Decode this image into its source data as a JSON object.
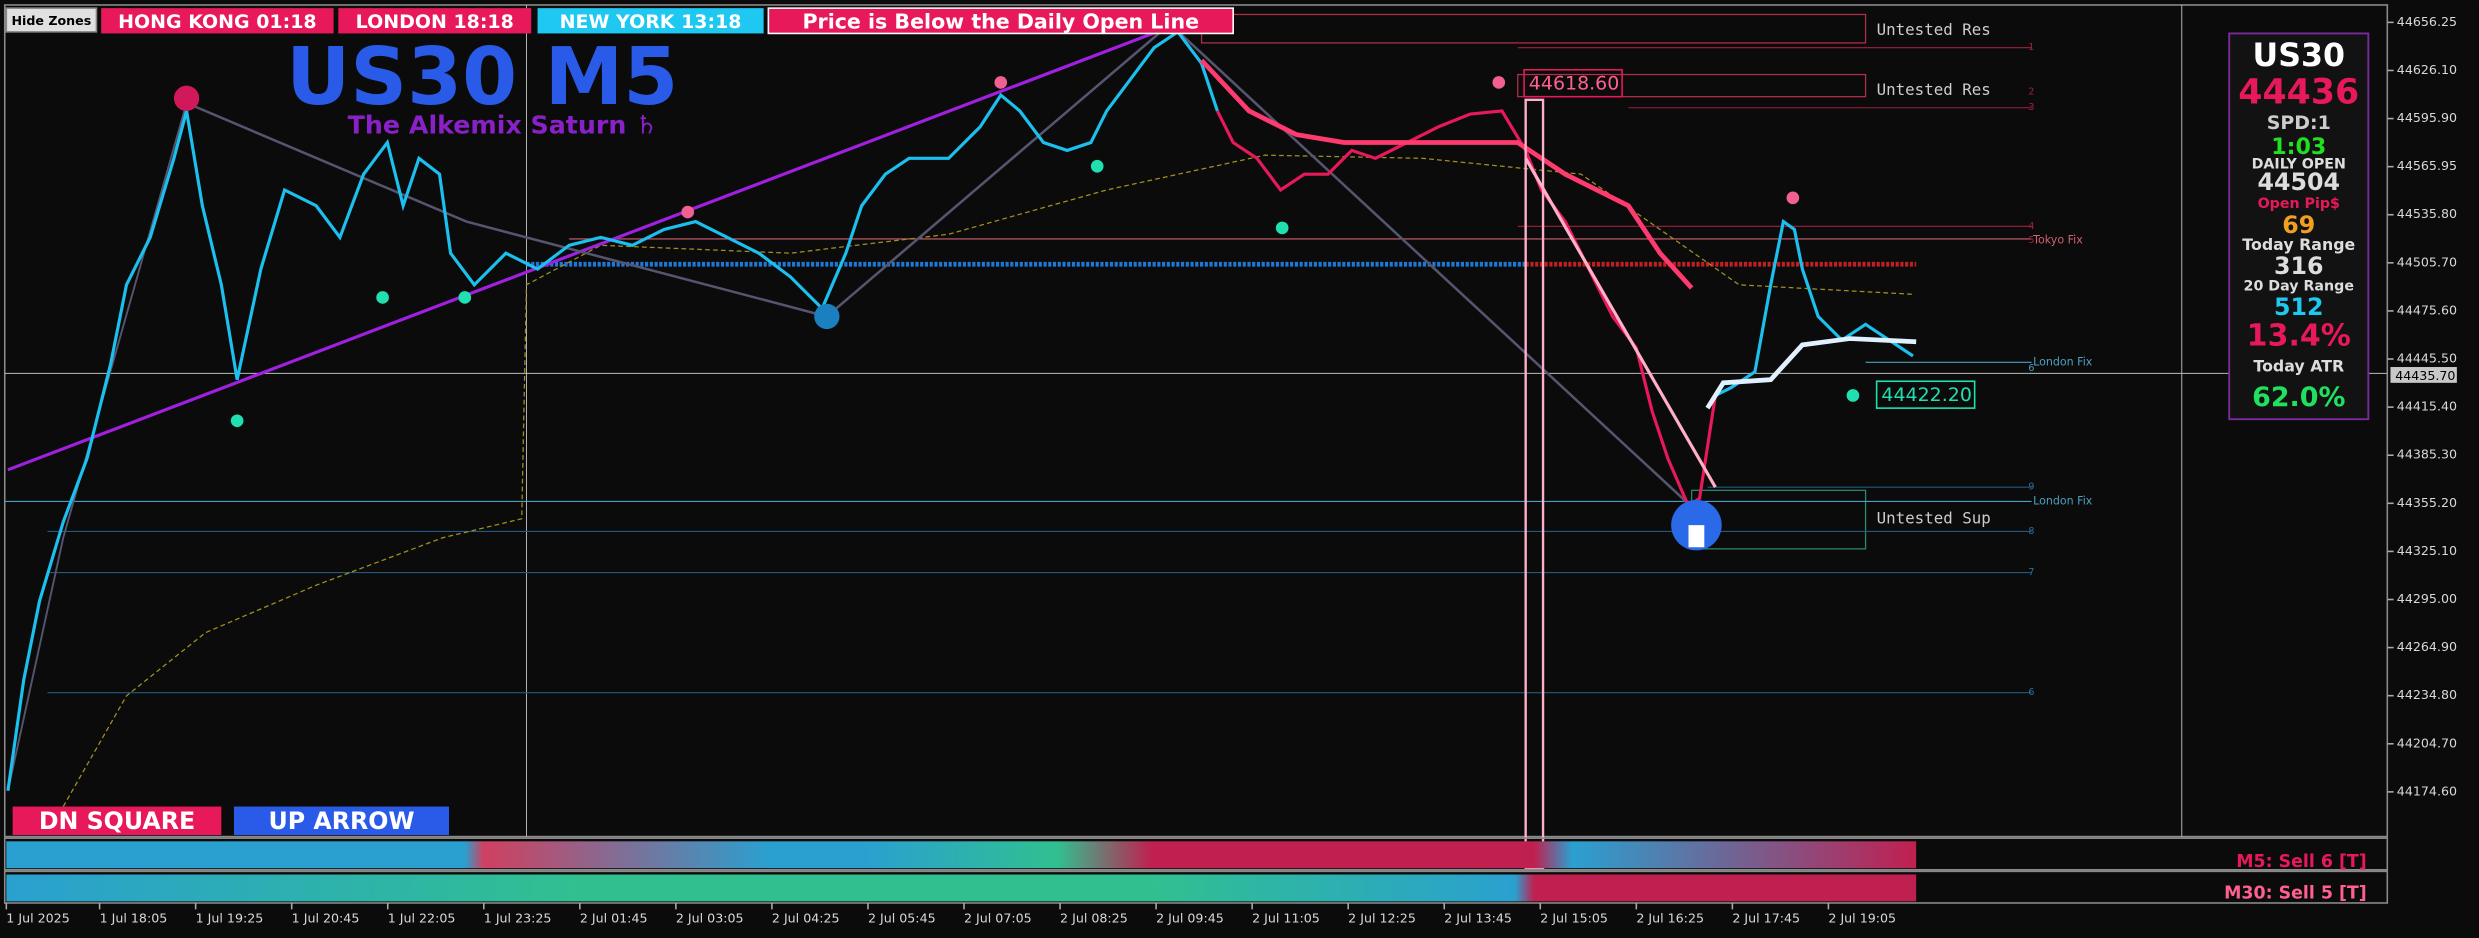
{
  "toolbar": {
    "hide_zones": "Hide Zones",
    "sessions": [
      "HONG KONG 01:18",
      "LONDON  18:18",
      "NEW YORK 13:18"
    ],
    "alert": "Price is Below the Daily Open Line"
  },
  "chart": {
    "symbol_title": "US30 M5",
    "subtitle": "The Alkemix Saturn ♄",
    "zones": [
      "Untested Res",
      "Untested Res",
      "Untested Sup"
    ],
    "price_tags": [
      "44618.60",
      "44422.20"
    ],
    "fix_labels": [
      "Tokyo Fix",
      "London Fix",
      "London Fix"
    ],
    "level_numbers": [
      "1",
      "2",
      "3",
      "4",
      "5",
      "6",
      "9",
      "8",
      "7",
      "6"
    ],
    "price_axis": [
      "44656.25",
      "44626.10",
      "44595.90",
      "44565.95",
      "44535.80",
      "44505.70",
      "44475.60",
      "44445.50",
      "44415.40",
      "44385.30",
      "44355.20",
      "44325.10",
      "44295.00",
      "44264.90",
      "44234.80",
      "44204.70",
      "44174.60"
    ],
    "current_price": "44435.70",
    "time_axis": [
      "1 Jul 2025",
      "1 Jul 18:05",
      "1 Jul 19:25",
      "1 Jul 20:45",
      "1 Jul 22:05",
      "1 Jul 23:25",
      "2 Jul 01:45",
      "2 Jul 03:05",
      "2 Jul 04:25",
      "2 Jul 05:45",
      "2 Jul 07:05",
      "2 Jul 08:25",
      "2 Jul 09:45",
      "2 Jul 11:05",
      "2 Jul 12:25",
      "2 Jul 13:45",
      "2 Jul 15:05",
      "2 Jul 16:25",
      "2 Jul 17:45",
      "2 Jul 19:05"
    ]
  },
  "panel": [
    "US30",
    "44436",
    "SPD:1",
    "1:03",
    "DAILY OPEN",
    "44504",
    "Open Pip$",
    "69",
    "Today Range",
    "316",
    "20 Day Range",
    "512",
    "13.4%",
    "Today ATR",
    "62.0%"
  ],
  "signals": {
    "dn": "DN SQUARE",
    "up": "UP ARROW",
    "m5": "M5: Sell 6 [T]",
    "m30": "M30: Sell 5 [T]"
  }
}
